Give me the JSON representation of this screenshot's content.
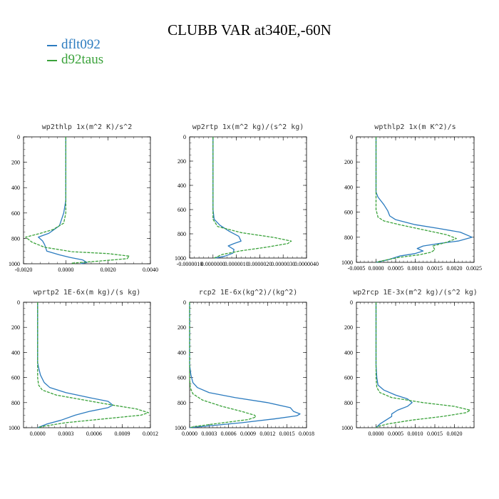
{
  "title": "CLUBB VAR at340E,-60N",
  "legend": [
    {
      "label": "dflt092",
      "color": "#2b7bbf"
    },
    {
      "label": "d92taus",
      "color": "#3aa23a"
    }
  ],
  "chart_data": [
    {
      "type": "line",
      "title": "wp2thlp   1x(m^2 K)/s^2",
      "xlim": [
        -0.002,
        0.004
      ],
      "xticks": [
        -0.002,
        0.0,
        0.002,
        0.004
      ],
      "xtick_labels": [
        "-0.0020",
        "0.0000",
        "0.0020",
        "0.0040"
      ],
      "ylim": [
        1000,
        0
      ],
      "yticks": [
        0,
        200,
        400,
        600,
        800,
        1000
      ],
      "series": [
        {
          "name": "dflt092",
          "points": [
            [
              0,
              0
            ],
            [
              0,
              200
            ],
            [
              0,
              400
            ],
            [
              0,
              500
            ],
            [
              -0.0001,
              600
            ],
            [
              -0.0003,
              700
            ],
            [
              -0.0008,
              760
            ],
            [
              -0.0013,
              790
            ],
            [
              -0.0011,
              820
            ],
            [
              -0.001,
              850
            ],
            [
              -0.0009,
              900
            ],
            [
              -0.0003,
              930
            ],
            [
              0.0002,
              950
            ],
            [
              0.0008,
              970
            ],
            [
              0.001,
              990
            ],
            [
              0.0007,
              1000
            ]
          ]
        },
        {
          "name": "d92taus",
          "points": [
            [
              0,
              0
            ],
            [
              0,
              200
            ],
            [
              0,
              400
            ],
            [
              0,
              500
            ],
            [
              0,
              600
            ],
            [
              -0.0001,
              680
            ],
            [
              -0.0006,
              730
            ],
            [
              -0.0012,
              760
            ],
            [
              -0.0019,
              790
            ],
            [
              -0.0016,
              830
            ],
            [
              -0.001,
              870
            ],
            [
              0.0003,
              905
            ],
            [
              0.002,
              920
            ],
            [
              0.003,
              940
            ],
            [
              0.0029,
              960
            ],
            [
              0.0015,
              980
            ],
            [
              0.0003,
              995
            ],
            [
              0.0004,
              1000
            ]
          ]
        }
      ]
    },
    {
      "type": "line",
      "title": "wp2rtp   1x(m^2 kg)/(s^2 kg)",
      "xlim": [
        -1e-06,
        4e-06
      ],
      "xticks": [
        -1e-06,
        0.0,
        1e-06,
        2e-06,
        3e-06,
        4e-06
      ],
      "xtick_labels": [
        "-0.0000010",
        "0.0000000",
        "0.0000010",
        "0.0000020",
        "0.0000030",
        "0.0000040"
      ],
      "ylim": [
        1000,
        0
      ],
      "yticks": [
        0,
        200,
        400,
        600,
        800,
        1000
      ],
      "series": [
        {
          "name": "dflt092",
          "points": [
            [
              0,
              0
            ],
            [
              0,
              200
            ],
            [
              0,
              400
            ],
            [
              0,
              600
            ],
            [
              5e-08,
              680
            ],
            [
              3e-07,
              730
            ],
            [
              7e-07,
              780
            ],
            [
              1.1e-06,
              820
            ],
            [
              1.2e-06,
              860
            ],
            [
              9e-07,
              880
            ],
            [
              6.5e-07,
              900
            ],
            [
              9e-07,
              930
            ],
            [
              8.5e-07,
              960
            ],
            [
              5e-07,
              985
            ],
            [
              1e-07,
              1000
            ]
          ]
        },
        {
          "name": "d92taus",
          "points": [
            [
              0,
              0
            ],
            [
              0,
              200
            ],
            [
              0,
              400
            ],
            [
              0,
              600
            ],
            [
              0,
              680
            ],
            [
              2e-07,
              740
            ],
            [
              1.2e-06,
              790
            ],
            [
              2.6e-06,
              830
            ],
            [
              3.35e-06,
              860
            ],
            [
              3.2e-06,
              880
            ],
            [
              2.3e-06,
              910
            ],
            [
              1.2e-06,
              940
            ],
            [
              4e-07,
              970
            ],
            [
              5e-08,
              1000
            ]
          ]
        }
      ]
    },
    {
      "type": "line",
      "title": "wpthlp2   1x(m K^2)/s",
      "xlim": [
        -0.0005,
        0.0025
      ],
      "xticks": [
        -0.0005,
        0.0,
        0.0005,
        0.001,
        0.0015,
        0.002,
        0.0025
      ],
      "xtick_labels": [
        "-0.0005",
        "0.0000",
        "0.0005",
        "0.0010",
        "0.0015",
        "0.0020",
        "0.0025"
      ],
      "ylim": [
        1000,
        0
      ],
      "yticks": [
        0,
        200,
        400,
        600,
        800,
        1000
      ],
      "series": [
        {
          "name": "dflt092",
          "points": [
            [
              0,
              0
            ],
            [
              0,
              300
            ],
            [
              0,
              440
            ],
            [
              5e-05,
              480
            ],
            [
              0.0002,
              540
            ],
            [
              0.0003,
              590
            ],
            [
              0.00035,
              630
            ],
            [
              0.0005,
              660
            ],
            [
              0.001,
              700
            ],
            [
              0.0016,
              730
            ],
            [
              0.00215,
              760
            ],
            [
              0.00245,
              800
            ],
            [
              0.0021,
              830
            ],
            [
              0.0016,
              850
            ],
            [
              0.0012,
              870
            ],
            [
              0.00105,
              890
            ],
            [
              0.0012,
              910
            ],
            [
              0.001,
              930
            ],
            [
              0.0006,
              950
            ],
            [
              0.0003,
              980
            ],
            [
              0.0,
              1000
            ]
          ]
        },
        {
          "name": "d92taus",
          "points": [
            [
              0,
              0
            ],
            [
              0,
              300
            ],
            [
              0,
              500
            ],
            [
              0,
              580
            ],
            [
              5e-05,
              640
            ],
            [
              0.0002,
              670
            ],
            [
              0.0006,
              700
            ],
            [
              0.0012,
              740
            ],
            [
              0.0018,
              780
            ],
            [
              0.00205,
              810
            ],
            [
              0.0018,
              840
            ],
            [
              0.00145,
              870
            ],
            [
              0.0015,
              900
            ],
            [
              0.0014,
              920
            ],
            [
              0.0011,
              940
            ],
            [
              0.0006,
              960
            ],
            [
              0.0002,
              985
            ],
            [
              0.0,
              1000
            ]
          ]
        }
      ]
    },
    {
      "type": "line",
      "title": "wprtp2   1E-6x(m kg)/(s kg)",
      "xlim": [
        -0.00015,
        0.0012
      ],
      "xticks": [
        0.0,
        0.0003,
        0.0006,
        0.0009,
        0.0012
      ],
      "xtick_labels": [
        "0.0000",
        "0.0003",
        "0.0006",
        "0.0009",
        "0.0012"
      ],
      "ylim": [
        1000,
        0
      ],
      "yticks": [
        0,
        200,
        400,
        600,
        800,
        1000
      ],
      "series": [
        {
          "name": "dflt092",
          "points": [
            [
              0,
              0
            ],
            [
              0,
              300
            ],
            [
              0,
              480
            ],
            [
              1e-05,
              520
            ],
            [
              3e-05,
              580
            ],
            [
              7e-05,
              640
            ],
            [
              0.00013,
              680
            ],
            [
              0.0003,
              720
            ],
            [
              0.00055,
              760
            ],
            [
              0.00075,
              790
            ],
            [
              0.0008,
              820
            ],
            [
              0.00075,
              840
            ],
            [
              0.00055,
              870
            ],
            [
              0.0004,
              900
            ],
            [
              0.00025,
              940
            ],
            [
              0.0001,
              970
            ],
            [
              0.0,
              1000
            ]
          ]
        },
        {
          "name": "d92taus",
          "points": [
            [
              0,
              0
            ],
            [
              0,
              300
            ],
            [
              0,
              500
            ],
            [
              0,
              600
            ],
            [
              1e-05,
              660
            ],
            [
              5e-05,
              700
            ],
            [
              0.0002,
              740
            ],
            [
              0.0005,
              780
            ],
            [
              0.0008,
              820
            ],
            [
              0.00105,
              850
            ],
            [
              0.00118,
              880
            ],
            [
              0.0011,
              900
            ],
            [
              0.0007,
              930
            ],
            [
              0.0003,
              960
            ],
            [
              5e-05,
              990
            ],
            [
              0.0,
              1000
            ]
          ]
        }
      ]
    },
    {
      "type": "line",
      "title": "rcp2   1E-6x(kg^2)/(kg^2)",
      "xlim": [
        0.0,
        0.0018
      ],
      "xticks": [
        0.0,
        0.0003,
        0.0006,
        0.0009,
        0.0012,
        0.0015,
        0.0018
      ],
      "xtick_labels": [
        "0.0000",
        "0.0003",
        "0.0006",
        "0.0009",
        "0.0012",
        "0.0015",
        "0.0018"
      ],
      "ylim": [
        1000,
        0
      ],
      "yticks": [
        0,
        200,
        400,
        600,
        800,
        1000
      ],
      "series": [
        {
          "name": "dflt092",
          "points": [
            [
              0,
              0
            ],
            [
              0,
              300
            ],
            [
              0,
              500
            ],
            [
              2e-05,
              580
            ],
            [
              5e-05,
              640
            ],
            [
              0.00012,
              680
            ],
            [
              0.0003,
              720
            ],
            [
              0.0007,
              760
            ],
            [
              0.0012,
              800
            ],
            [
              0.00155,
              840
            ],
            [
              0.0016,
              870
            ],
            [
              0.0017,
              890
            ],
            [
              0.00165,
              905
            ],
            [
              0.0013,
              930
            ],
            [
              0.0008,
              960
            ],
            [
              0.0003,
              985
            ],
            [
              0.0,
              1000
            ]
          ]
        },
        {
          "name": "d92taus",
          "points": [
            [
              0,
              0
            ],
            [
              0,
              300
            ],
            [
              0,
              500
            ],
            [
              0,
              600
            ],
            [
              1e-05,
              680
            ],
            [
              5e-05,
              730
            ],
            [
              0.0002,
              780
            ],
            [
              0.0005,
              830
            ],
            [
              0.0008,
              870
            ],
            [
              0.001,
              900
            ],
            [
              0.00102,
              915
            ],
            [
              0.0009,
              935
            ],
            [
              0.0006,
              955
            ],
            [
              0.0003,
              975
            ],
            [
              8e-05,
              990
            ],
            [
              0.0,
              1000
            ]
          ]
        }
      ]
    },
    {
      "type": "line",
      "title": "wp2rcp   1E-3x(m^2 kg)/(s^2 kg)",
      "xlim": [
        -0.0005,
        0.0025
      ],
      "xticks": [
        0.0,
        0.0005,
        0.001,
        0.0015,
        0.002
      ],
      "xtick_labels": [
        "0.0000",
        "0.0005",
        "0.0010",
        "0.0015",
        "0.0020"
      ],
      "ylim": [
        1000,
        0
      ],
      "yticks": [
        0,
        200,
        400,
        600,
        800,
        1000
      ],
      "series": [
        {
          "name": "dflt092",
          "points": [
            [
              0,
              0
            ],
            [
              0,
              300
            ],
            [
              0,
              500
            ],
            [
              2e-05,
              600
            ],
            [
              5e-05,
              660
            ],
            [
              0.0002,
              700
            ],
            [
              0.0005,
              740
            ],
            [
              0.0008,
              770
            ],
            [
              0.00092,
              800
            ],
            [
              0.0008,
              830
            ],
            [
              0.00055,
              860
            ],
            [
              0.0004,
              890
            ],
            [
              0.0004,
              910
            ],
            [
              0.00025,
              940
            ],
            [
              0.0001,
              970
            ],
            [
              0.0,
              1000
            ]
          ]
        },
        {
          "name": "d92taus",
          "points": [
            [
              0,
              0
            ],
            [
              0,
              300
            ],
            [
              0,
              500
            ],
            [
              0,
              600
            ],
            [
              2e-05,
              680
            ],
            [
              0.0001,
              720
            ],
            [
              0.0004,
              760
            ],
            [
              0.0012,
              800
            ],
            [
              0.002,
              830
            ],
            [
              0.0024,
              860
            ],
            [
              0.0023,
              880
            ],
            [
              0.0017,
              910
            ],
            [
              0.0009,
              940
            ],
            [
              0.0003,
              970
            ],
            [
              5e-05,
              990
            ],
            [
              0.0,
              1000
            ]
          ]
        }
      ]
    }
  ]
}
